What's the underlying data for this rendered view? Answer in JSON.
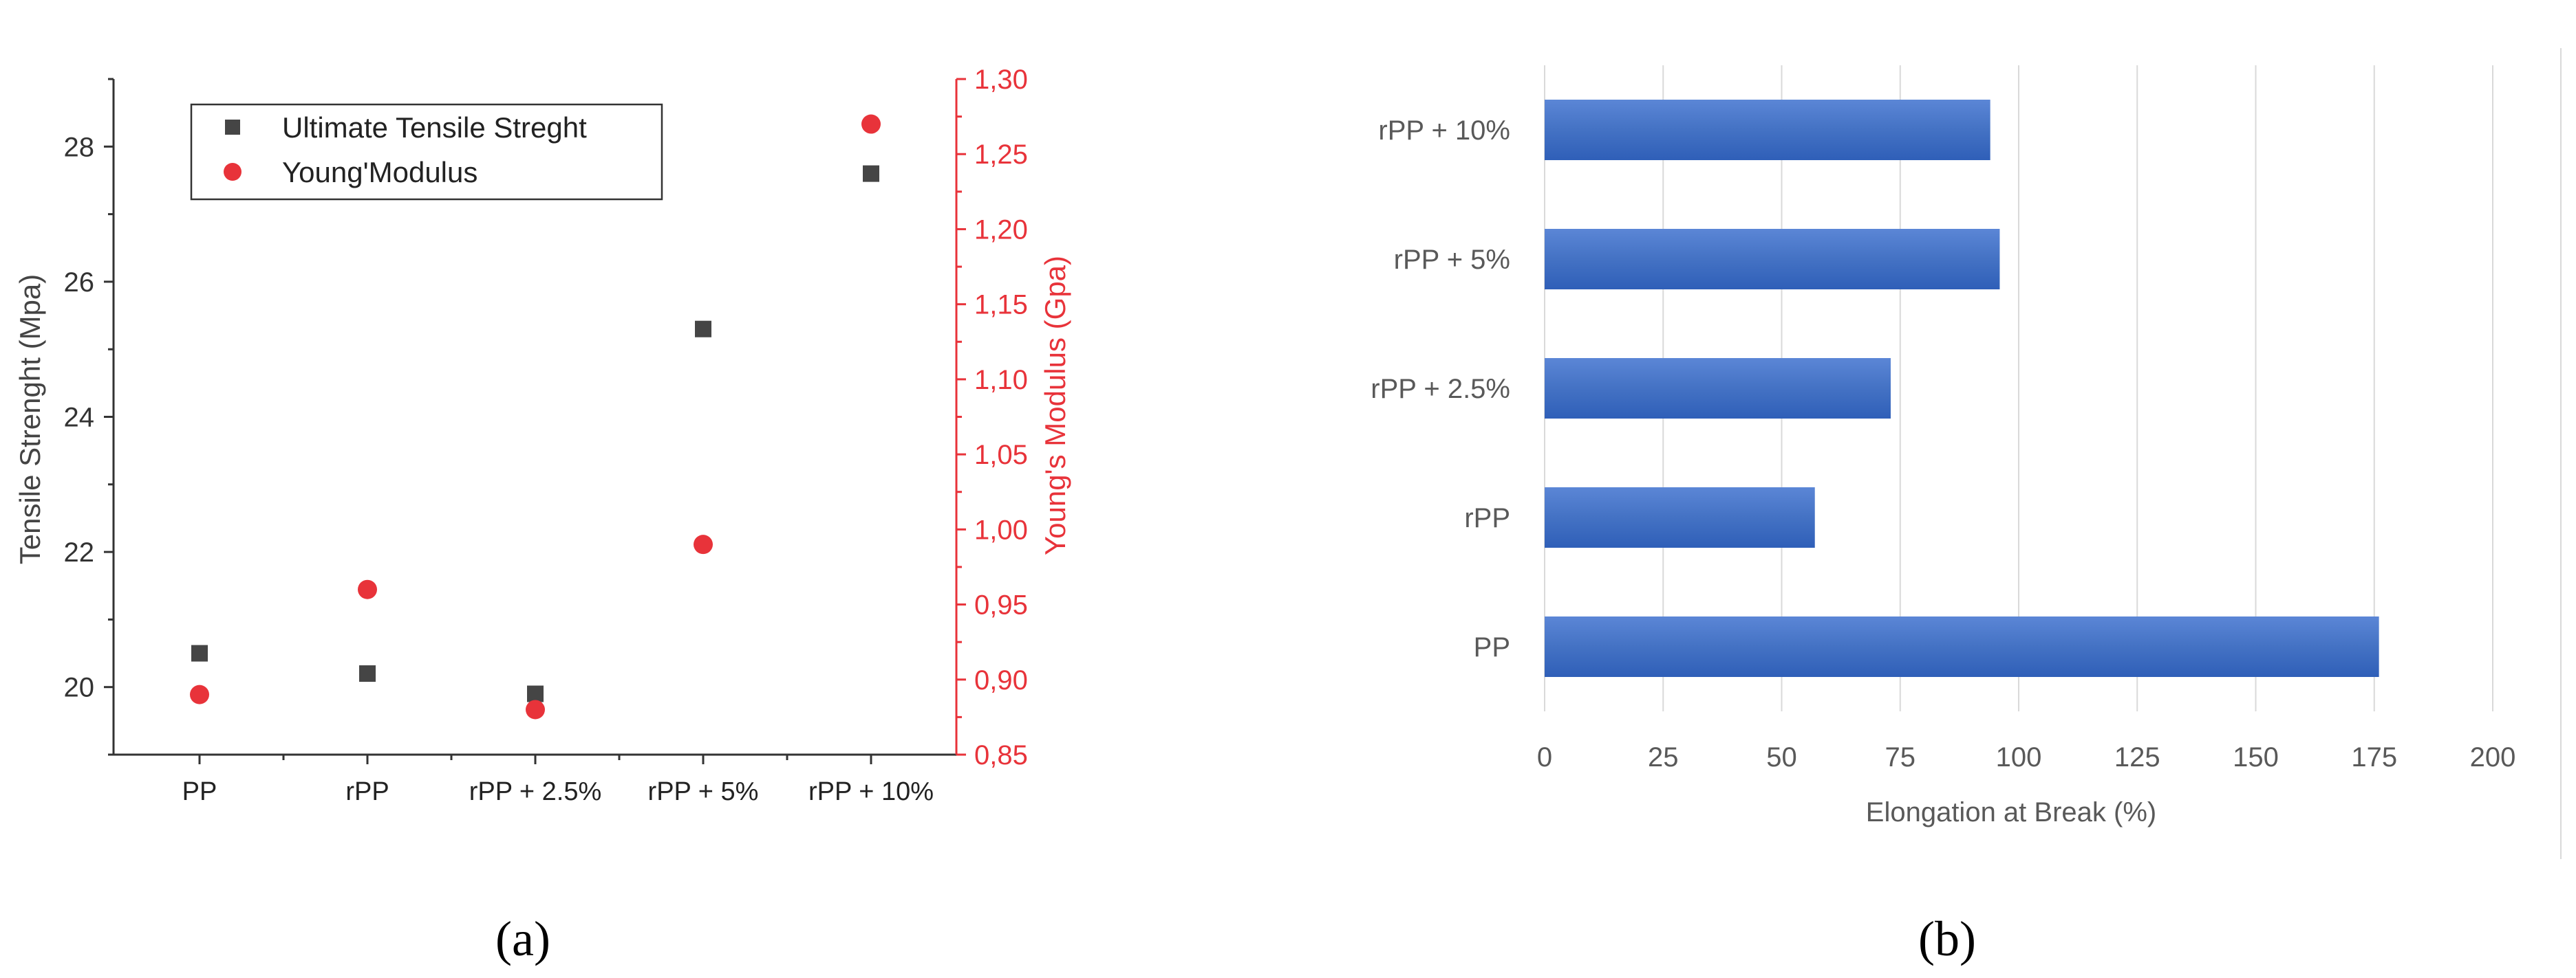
{
  "panels": {
    "a": {
      "label": "(a)"
    },
    "b": {
      "label": "(b)"
    }
  },
  "colors": {
    "dark_series": "#454545",
    "red_series": "#e8333a",
    "bar": "#4472c4",
    "bar_dark": "#2f5fb8",
    "grid": "#d9d9d9",
    "axis_dark": "#333333"
  },
  "chart_data": [
    {
      "type": "scatter",
      "categories": [
        "PP",
        "rPP",
        "rPP + 2.5%",
        "rPP + 5%",
        "rPP + 10%"
      ],
      "ylabel": "Tensile Strenght (Mpa)",
      "y2label": "Young's Modulus (Gpa)",
      "ylim": [
        19,
        29
      ],
      "y2lim": [
        0.85,
        1.3
      ],
      "yticks": [
        "20",
        "22",
        "24",
        "26",
        "28"
      ],
      "y2ticks": [
        "0,85",
        "0,90",
        "0,95",
        "1,00",
        "1,05",
        "1,10",
        "1,15",
        "1,20",
        "1,25",
        "1,30"
      ],
      "legend_position": "top-left",
      "grid": false,
      "series": [
        {
          "name": "Ultimate Tensile Streght",
          "axis": "left",
          "marker": "square",
          "values": [
            20.5,
            20.2,
            19.9,
            25.3,
            27.6
          ]
        },
        {
          "name": "Young'Modulus",
          "axis": "right",
          "marker": "circle",
          "values": [
            0.89,
            0.96,
            0.88,
            0.99,
            1.27
          ]
        }
      ]
    },
    {
      "type": "bar",
      "orientation": "horizontal",
      "categories": [
        "PP",
        "rPP",
        "rPP + 2.5%",
        "rPP + 5%",
        "rPP + 10%"
      ],
      "values": [
        176,
        57,
        73,
        96,
        94
      ],
      "xlabel": "Elongation at Break (%)",
      "xlim": [
        0,
        200
      ],
      "xticks": [
        "0",
        "25",
        "50",
        "75",
        "100",
        "125",
        "150",
        "175",
        "200"
      ],
      "grid": true
    }
  ]
}
